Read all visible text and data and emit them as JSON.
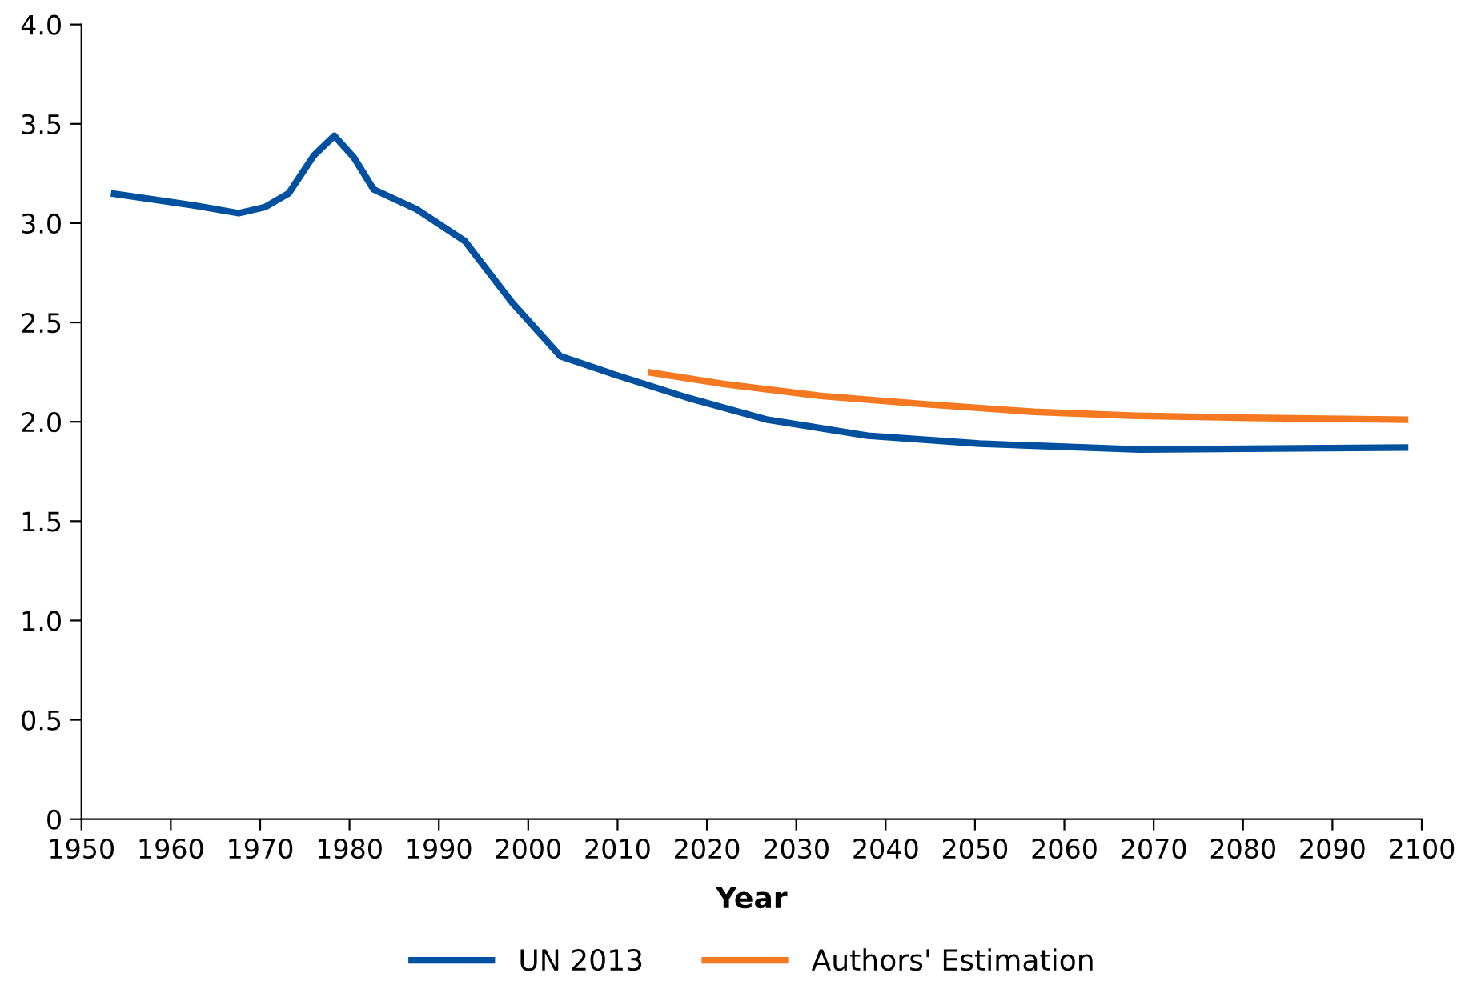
{
  "chart_data": {
    "type": "line",
    "xlabel": "Year",
    "xlim": [
      1950,
      2100
    ],
    "xticks": [
      1950,
      1960,
      1970,
      1980,
      1990,
      2000,
      2010,
      2020,
      2030,
      2040,
      2050,
      2060,
      2070,
      2080,
      2090,
      2100
    ],
    "ylim": [
      0,
      4.0
    ],
    "yticks": [
      {
        "value": 0,
        "label": "0"
      },
      {
        "value": 0.5,
        "label": "0.5"
      },
      {
        "value": 1.0,
        "label": "1.0"
      },
      {
        "value": 1.5,
        "label": "1.5"
      },
      {
        "value": 2.0,
        "label": "2.0"
      },
      {
        "value": 2.5,
        "label": "2.5"
      },
      {
        "value": 3.0,
        "label": "3.0"
      },
      {
        "value": 3.5,
        "label": "3.5"
      },
      {
        "value": 4.0,
        "label": "4.0"
      }
    ],
    "grid": false,
    "legend": "bottom",
    "marker": "none",
    "line_style": "solid",
    "series": [
      {
        "name": "UN 2013",
        "color": "#0050a0",
        "x": [
          1953.3,
          1962.5,
          1967.6,
          1970.5,
          1973.2,
          1976,
          1978.3,
          1980.5,
          1982.7,
          1987.5,
          1992.9,
          1998.2,
          2003.6,
          2009.5,
          2017.9,
          2026.8,
          2038,
          2050.5,
          2068.4,
          2098.5
        ],
        "values": [
          3.15,
          3.09,
          3.05,
          3.08,
          3.15,
          3.34,
          3.44,
          3.33,
          3.17,
          3.07,
          2.91,
          2.6,
          2.33,
          2.24,
          2.12,
          2.01,
          1.93,
          1.89,
          1.86,
          1.87
        ]
      },
      {
        "name": "Authors' Estimation",
        "color": "#f47920",
        "x": [
          2013.4,
          2022,
          2032.7,
          2044,
          2056.6,
          2068,
          2080.4,
          2098.5
        ],
        "values": [
          2.25,
          2.19,
          2.13,
          2.09,
          2.05,
          2.03,
          2.02,
          2.01
        ]
      }
    ]
  }
}
